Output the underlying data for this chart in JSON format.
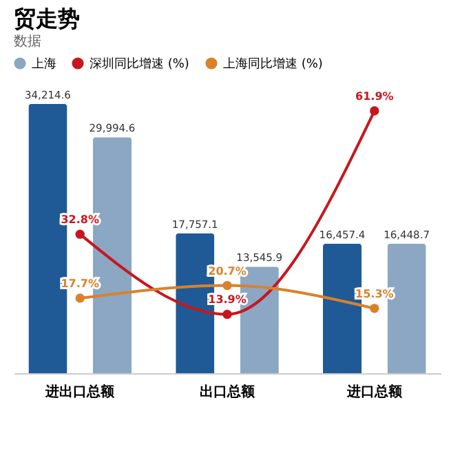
{
  "chart_data": {
    "type": "bar",
    "title": "贸走势",
    "subtitle": "数据",
    "categories": [
      "进出口总额",
      "出口总额",
      "进口总额"
    ],
    "series": [
      {
        "color": "#1f5a96",
        "values": [
          34214.6,
          17757.1,
          16457.4
        ],
        "value_labels": [
          "34,214.6",
          "17,757.1",
          "16,457.4"
        ]
      },
      {
        "name": "上海",
        "color": "#8ba7c4",
        "values": [
          29994.6,
          13545.9,
          16448.7
        ],
        "value_labels": [
          "29,994.6",
          "13,545.9",
          "16,448.7"
        ]
      },
      {
        "name": "深圳同比增速 (%)",
        "type": "line",
        "axis": "y2",
        "color": "#c8161e",
        "values": [
          32.8,
          13.9,
          61.9
        ],
        "value_labels": [
          "32.8%",
          "13.9%",
          "61.9%"
        ]
      },
      {
        "name": "上海同比增速 (%)",
        "type": "line",
        "axis": "y2",
        "color": "#d9822b",
        "values": [
          17.7,
          20.7,
          15.3
        ],
        "value_labels": [
          "17.7%",
          "20.7%",
          "15.3%"
        ]
      }
    ],
    "legend": "top",
    "marker": "circle"
  }
}
